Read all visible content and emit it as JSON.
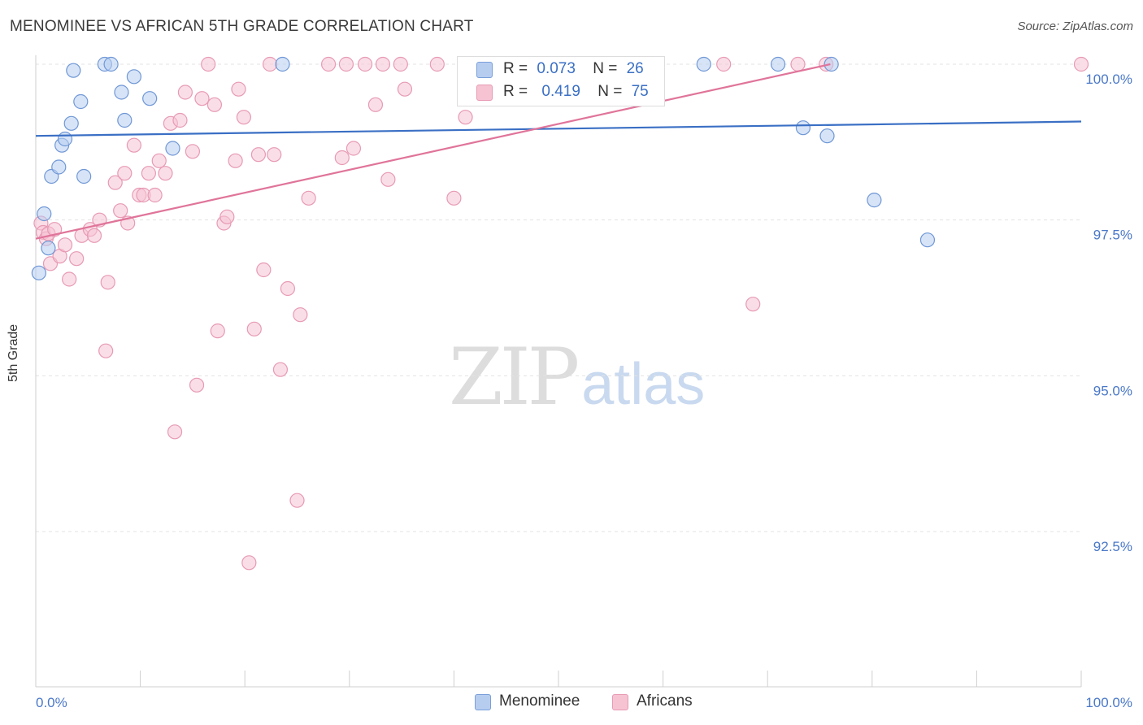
{
  "title": "MENOMINEE VS AFRICAN 5TH GRADE CORRELATION CHART",
  "source": "Source: ZipAtlas.com",
  "watermark": {
    "zip": "ZIP",
    "atlas": "atlas"
  },
  "colors": {
    "blue": "#3a6fc4",
    "blue_fill": "#b7cdf0",
    "pink": "#e0749a",
    "pink_fill": "#f6c3d3",
    "grid": "#e3e3e3",
    "tick_label": "#4a78c8"
  },
  "legend_top": {
    "rows": [
      {
        "r_label": "R =",
        "r_value": "0.073",
        "n_label": "N =",
        "n_value": "26"
      },
      {
        "r_label": "R =",
        "r_value": "0.419",
        "n_label": "N =",
        "n_value": "75"
      }
    ]
  },
  "legend_bottom": [
    {
      "label": "Menominee"
    },
    {
      "label": "Africans"
    }
  ],
  "chart_data": {
    "type": "scatter",
    "title": "MENOMINEE VS AFRICAN 5TH GRADE CORRELATION CHART",
    "xlabel": "",
    "ylabel": "5th Grade",
    "xlim": [
      0,
      100
    ],
    "ylim": [
      90.2,
      100.4
    ],
    "x_tick_labels": [
      "0.0%",
      "100.0%"
    ],
    "y_ticks": [
      {
        "value": 100.0,
        "label": "100.0%"
      },
      {
        "value": 97.5,
        "label": "97.5%"
      },
      {
        "value": 95.0,
        "label": "95.0%"
      },
      {
        "value": 92.5,
        "label": "92.5%"
      }
    ],
    "grid": true,
    "legend_position": "top-center",
    "series": [
      {
        "name": "Menominee",
        "color": "#3a6fc4",
        "trend": [
          [
            0,
            98.85
          ],
          [
            100,
            99.08
          ]
        ],
        "points": [
          [
            0.3,
            96.65
          ],
          [
            0.8,
            97.6
          ],
          [
            1.2,
            97.05
          ],
          [
            1.5,
            98.2
          ],
          [
            2.2,
            98.35
          ],
          [
            2.5,
            98.7
          ],
          [
            2.8,
            98.8
          ],
          [
            3.4,
            99.05
          ],
          [
            3.6,
            99.9
          ],
          [
            4.3,
            99.4
          ],
          [
            4.6,
            98.2
          ],
          [
            6.6,
            100.0
          ],
          [
            7.2,
            100.0
          ],
          [
            8.2,
            99.55
          ],
          [
            8.5,
            99.1
          ],
          [
            9.4,
            99.8
          ],
          [
            10.9,
            99.45
          ],
          [
            13.1,
            98.65
          ],
          [
            23.6,
            100.0
          ],
          [
            63.9,
            100.0
          ],
          [
            71.0,
            100.0
          ],
          [
            73.4,
            98.98
          ],
          [
            75.7,
            98.85
          ],
          [
            76.1,
            100.0
          ],
          [
            80.2,
            97.82
          ],
          [
            85.3,
            97.18
          ]
        ]
      },
      {
        "name": "Africans",
        "color": "#e0749a",
        "trend": [
          [
            0,
            97.2
          ],
          [
            76,
            100.0
          ]
        ],
        "points": [
          [
            0.5,
            97.45
          ],
          [
            0.7,
            97.3
          ],
          [
            1.0,
            97.2
          ],
          [
            1.2,
            97.28
          ],
          [
            1.4,
            96.8
          ],
          [
            1.8,
            97.35
          ],
          [
            2.3,
            96.92
          ],
          [
            2.8,
            97.1
          ],
          [
            3.2,
            96.55
          ],
          [
            3.9,
            96.88
          ],
          [
            4.4,
            97.25
          ],
          [
            5.2,
            97.35
          ],
          [
            5.6,
            97.25
          ],
          [
            6.1,
            97.5
          ],
          [
            6.7,
            95.4
          ],
          [
            6.9,
            96.5
          ],
          [
            7.6,
            98.1
          ],
          [
            8.1,
            97.65
          ],
          [
            8.5,
            98.25
          ],
          [
            8.8,
            97.45
          ],
          [
            9.4,
            98.7
          ],
          [
            9.9,
            97.9
          ],
          [
            10.3,
            97.9
          ],
          [
            10.8,
            98.25
          ],
          [
            11.4,
            97.9
          ],
          [
            11.8,
            98.45
          ],
          [
            12.4,
            98.25
          ],
          [
            12.9,
            99.05
          ],
          [
            13.3,
            94.1
          ],
          [
            13.8,
            99.1
          ],
          [
            14.3,
            99.55
          ],
          [
            15.0,
            98.6
          ],
          [
            15.4,
            94.85
          ],
          [
            15.9,
            99.45
          ],
          [
            16.5,
            100.0
          ],
          [
            17.1,
            99.35
          ],
          [
            17.4,
            95.72
          ],
          [
            18.0,
            97.45
          ],
          [
            18.3,
            97.55
          ],
          [
            19.1,
            98.45
          ],
          [
            19.4,
            99.6
          ],
          [
            19.9,
            99.15
          ],
          [
            20.4,
            92.0
          ],
          [
            20.9,
            95.75
          ],
          [
            21.3,
            98.55
          ],
          [
            21.8,
            96.7
          ],
          [
            22.4,
            100.0
          ],
          [
            22.8,
            98.55
          ],
          [
            23.4,
            95.1
          ],
          [
            24.1,
            96.4
          ],
          [
            25.0,
            93.0
          ],
          [
            25.3,
            95.98
          ],
          [
            26.1,
            97.85
          ],
          [
            28.0,
            100.0
          ],
          [
            29.3,
            98.5
          ],
          [
            29.7,
            100.0
          ],
          [
            30.4,
            98.65
          ],
          [
            31.5,
            100.0
          ],
          [
            32.5,
            99.35
          ],
          [
            33.2,
            100.0
          ],
          [
            33.7,
            98.15
          ],
          [
            34.9,
            100.0
          ],
          [
            35.3,
            99.6
          ],
          [
            38.4,
            100.0
          ],
          [
            40.0,
            97.85
          ],
          [
            41.1,
            99.15
          ],
          [
            46.6,
            100.0
          ],
          [
            47.5,
            100.0
          ],
          [
            56.1,
            100.0
          ],
          [
            59.3,
            100.0
          ],
          [
            65.8,
            100.0
          ],
          [
            68.6,
            96.15
          ],
          [
            72.9,
            100.0
          ],
          [
            75.6,
            100.0
          ],
          [
            100.0,
            100.0
          ]
        ]
      }
    ]
  }
}
